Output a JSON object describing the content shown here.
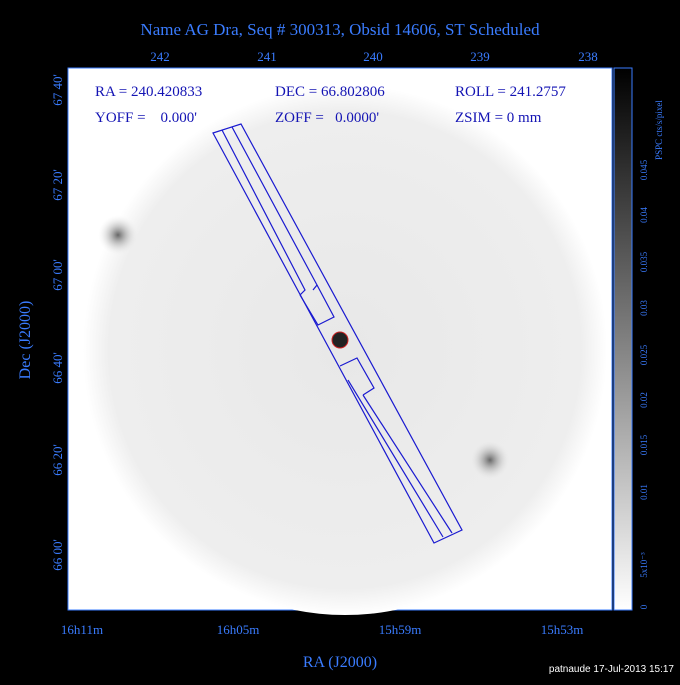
{
  "title": "Name AG Dra, Seq # 300313, Obsid 14606, ST Scheduled",
  "top_axis": {
    "ticks": [
      "242",
      "241",
      "240",
      "239",
      "238"
    ]
  },
  "left_axis": {
    "label": "Dec (J2000)",
    "ticks": [
      "67 40'",
      "67 20'",
      "67 00'",
      "66 40'",
      "66 20'",
      "66 00'"
    ]
  },
  "bottom_axis": {
    "label": "RA (J2000)",
    "ticks": [
      "16h11m",
      "16h05m",
      "15h59m",
      "15h53m"
    ]
  },
  "colorbar": {
    "label": "PSPC cts/s/pixel",
    "ticks": [
      "0",
      "5x10⁻³",
      "0.01",
      "0.015",
      "0.02",
      "0.025",
      "0.03",
      "0.035",
      "0.04",
      "0.045"
    ]
  },
  "info": {
    "ra": "RA = 240.420833",
    "dec": "DEC = 66.802806",
    "roll": "ROLL = 241.2757",
    "yoff": "YOFF =    0.000'",
    "zoff": "ZOFF =   0.0000'",
    "zsim": "ZSIM = 0 mm"
  },
  "footer": "patnaude 17-Jul-2013 15:17"
}
